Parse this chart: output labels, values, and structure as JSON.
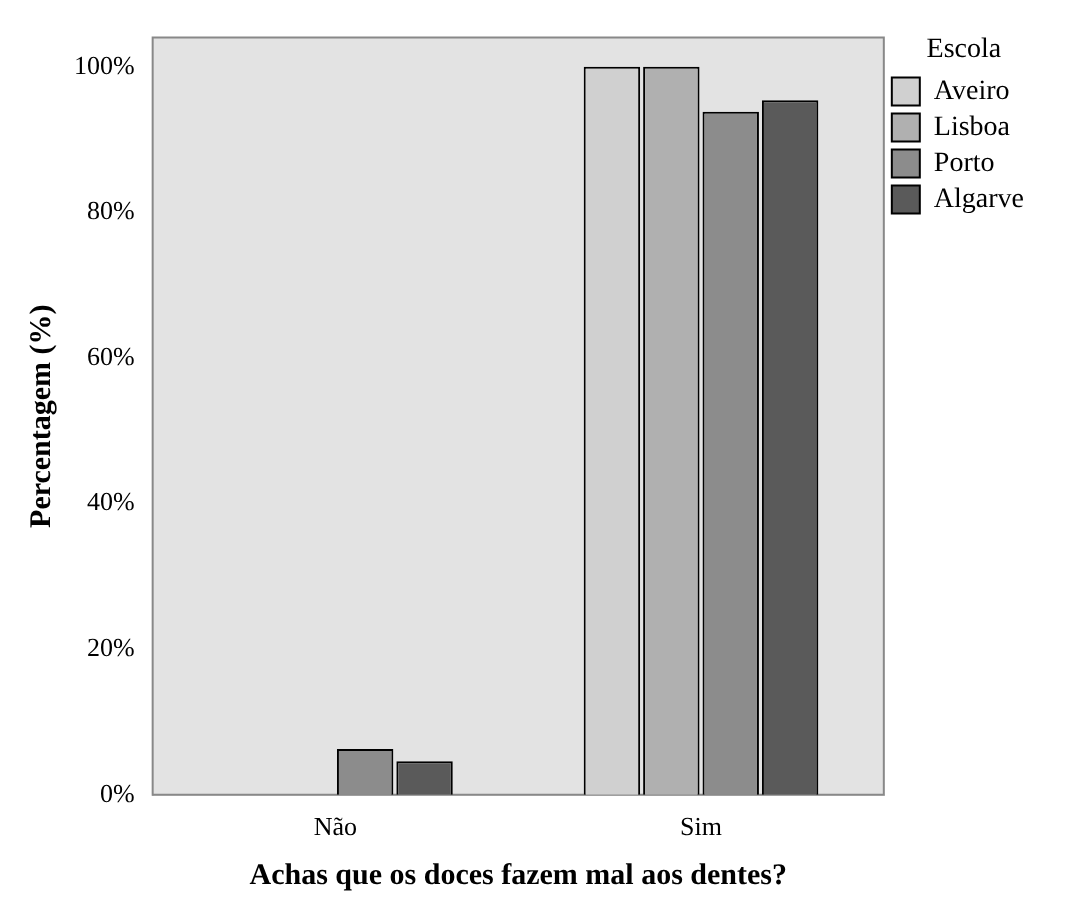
{
  "chart_data": {
    "type": "bar",
    "xlabel": "Achas que os doces fazem mal aos dentes?",
    "ylabel": "Percentagem (%)",
    "legend_title": "Escola",
    "categories": [
      "Não",
      "Sim"
    ],
    "series": [
      {
        "name": "Aveiro",
        "color": "#d0d0d0",
        "values": [
          0,
          100
        ]
      },
      {
        "name": "Lisboa",
        "color": "#b0b0b0",
        "values": [
          0,
          100
        ]
      },
      {
        "name": "Porto",
        "color": "#8c8c8c",
        "values": [
          6.3,
          93.8
        ]
      },
      {
        "name": "Algarve",
        "color": "#5a5a5a",
        "values": [
          4.6,
          95.4
        ]
      }
    ],
    "ylim": [
      0,
      104
    ],
    "yticks": [
      {
        "value": 0,
        "label": "0%"
      },
      {
        "value": 20,
        "label": "20%"
      },
      {
        "value": 40,
        "label": "40%"
      },
      {
        "value": 60,
        "label": "60%"
      },
      {
        "value": 80,
        "label": "80%"
      },
      {
        "value": 100,
        "label": "100%"
      }
    ],
    "grid": false,
    "legend": "right"
  }
}
